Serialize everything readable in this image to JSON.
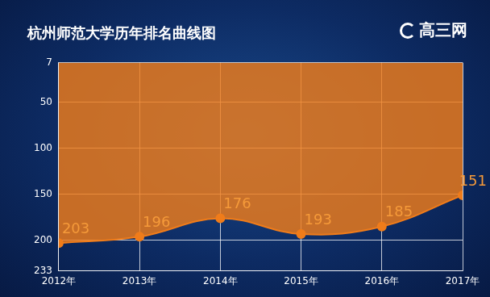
{
  "chart_data": {
    "type": "line",
    "title": "杭州师范大学历年排名曲线图",
    "annotations": [
      "高三网"
    ],
    "categories": [
      "2012年",
      "2013年",
      "2014年",
      "2015年",
      "2016年",
      "2017年"
    ],
    "values": [
      203,
      196,
      176,
      193,
      185,
      151
    ],
    "color": "#f07c1a",
    "ylim": [
      233,
      7
    ],
    "yticks": [
      7,
      50,
      100,
      150,
      200,
      233
    ],
    "grid": true,
    "data_labels": true,
    "marker": "circle"
  }
}
